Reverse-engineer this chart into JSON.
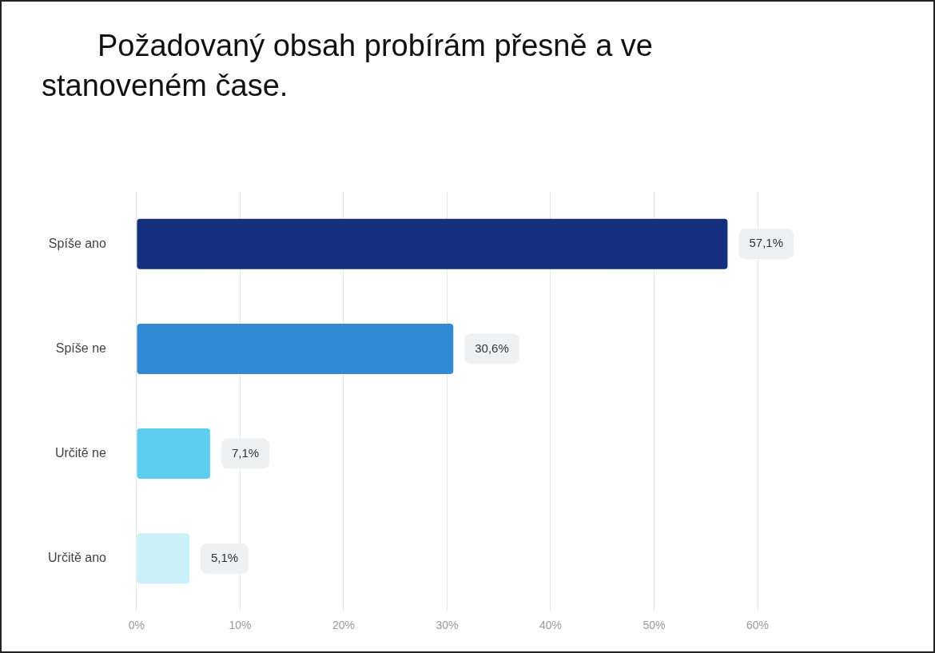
{
  "chart_data": {
    "type": "bar",
    "orientation": "horizontal",
    "title": "Požadovaný obsah probírám přesně a ve stanoveném čase.",
    "categories": [
      "Spíše ano",
      "Spíše ne",
      "Určitě ne",
      "Určitě ano"
    ],
    "values": [
      57.1,
      30.6,
      7.1,
      5.1
    ],
    "colors": [
      "#14307f",
      "#338ad4",
      "#5ccdef",
      "#cbf1f8"
    ],
    "value_labels": [
      "57,1%",
      "30,6%",
      "7,1%",
      "5,1%"
    ],
    "xlim": [
      0,
      60
    ],
    "xticks": [
      {
        "value": 0,
        "label": "0%"
      },
      {
        "value": 10,
        "label": "10%"
      },
      {
        "value": 20,
        "label": "20%"
      },
      {
        "value": 30,
        "label": "30%"
      },
      {
        "value": 40,
        "label": "40%"
      },
      {
        "value": 50,
        "label": "50%"
      },
      {
        "value": 60,
        "label": "60%"
      }
    ],
    "grid": "x",
    "legend": false
  }
}
